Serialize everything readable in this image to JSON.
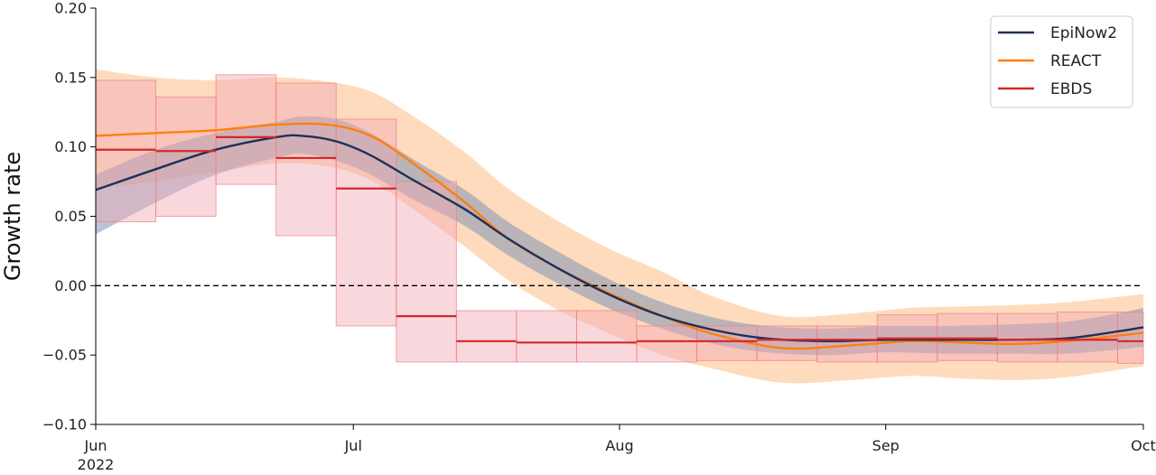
{
  "chart_data": {
    "type": "line",
    "title": "",
    "xlabel": "",
    "ylabel": "Growth rate",
    "x_start": "2022-06-01",
    "x_end": "2022-10-01",
    "ylim": [
      -0.1,
      0.2
    ],
    "yticks": [
      -0.1,
      -0.05,
      0.0,
      0.05,
      0.1,
      0.15,
      0.2
    ],
    "ytick_labels": [
      "−0.10",
      "−0.05",
      "0.00",
      "0.05",
      "0.10",
      "0.15",
      "0.20"
    ],
    "xticks": [
      {
        "date": "2022-06-01",
        "label": "Jun",
        "sublabel": "2022"
      },
      {
        "date": "2022-07-01",
        "label": "Jul",
        "sublabel": ""
      },
      {
        "date": "2022-08-01",
        "label": "Aug",
        "sublabel": ""
      },
      {
        "date": "2022-09-01",
        "label": "Sep",
        "sublabel": ""
      },
      {
        "date": "2022-10-01",
        "label": "Oct",
        "sublabel": ""
      }
    ],
    "reference_line": {
      "y": 0.0,
      "style": "dashed"
    },
    "legend": {
      "position": "top-right"
    },
    "series": [
      {
        "name": "EpiNow2",
        "kind": "line",
        "color": "#1f3057",
        "band_color": "#7f94b5",
        "points": [
          [
            "2022-06-01",
            0.069,
            0.037,
            0.08
          ],
          [
            "2022-06-08",
            0.084,
            0.06,
            0.098
          ],
          [
            "2022-06-15",
            0.098,
            0.08,
            0.11
          ],
          [
            "2022-06-22",
            0.107,
            0.092,
            0.118
          ],
          [
            "2022-06-25",
            0.108,
            0.095,
            0.122
          ],
          [
            "2022-06-29",
            0.104,
            0.09,
            0.12
          ],
          [
            "2022-07-03",
            0.094,
            0.08,
            0.11
          ],
          [
            "2022-07-08",
            0.076,
            0.062,
            0.091
          ],
          [
            "2022-07-14",
            0.055,
            0.043,
            0.069
          ],
          [
            "2022-07-19",
            0.034,
            0.022,
            0.046
          ],
          [
            "2022-07-25",
            0.012,
            0.001,
            0.024
          ],
          [
            "2022-07-31",
            -0.007,
            -0.017,
            0.004
          ],
          [
            "2022-08-06",
            -0.022,
            -0.031,
            -0.012
          ],
          [
            "2022-08-12",
            -0.032,
            -0.042,
            -0.023
          ],
          [
            "2022-08-18",
            -0.038,
            -0.048,
            -0.029
          ],
          [
            "2022-08-25",
            -0.04,
            -0.05,
            -0.031
          ],
          [
            "2022-09-01",
            -0.039,
            -0.048,
            -0.029
          ],
          [
            "2022-09-08",
            -0.039,
            -0.049,
            -0.029
          ],
          [
            "2022-09-15",
            -0.039,
            -0.049,
            -0.028
          ],
          [
            "2022-09-22",
            -0.038,
            -0.049,
            -0.026
          ],
          [
            "2022-09-28",
            -0.033,
            -0.046,
            -0.02
          ],
          [
            "2022-10-01",
            -0.03,
            -0.044,
            -0.016
          ]
        ]
      },
      {
        "name": "REACT",
        "kind": "line",
        "color": "#ff7f0e",
        "band_color": "#ffbe86",
        "points": [
          [
            "2022-06-01",
            0.108,
            0.07,
            0.156
          ],
          [
            "2022-06-08",
            0.11,
            0.075,
            0.15
          ],
          [
            "2022-06-15",
            0.112,
            0.082,
            0.148
          ],
          [
            "2022-06-22",
            0.116,
            0.088,
            0.15
          ],
          [
            "2022-06-28",
            0.116,
            0.086,
            0.147
          ],
          [
            "2022-07-03",
            0.108,
            0.076,
            0.14
          ],
          [
            "2022-07-08",
            0.088,
            0.055,
            0.122
          ],
          [
            "2022-07-14",
            0.06,
            0.028,
            0.096
          ],
          [
            "2022-07-19",
            0.034,
            0.004,
            0.07
          ],
          [
            "2022-07-25",
            0.012,
            -0.018,
            0.046
          ],
          [
            "2022-07-31",
            -0.006,
            -0.035,
            0.026
          ],
          [
            "2022-08-06",
            -0.022,
            -0.05,
            0.01
          ],
          [
            "2022-08-12",
            -0.035,
            -0.06,
            -0.008
          ],
          [
            "2022-08-20",
            -0.045,
            -0.07,
            -0.022
          ],
          [
            "2022-08-28",
            -0.043,
            -0.068,
            -0.02
          ],
          [
            "2022-09-04",
            -0.04,
            -0.065,
            -0.016
          ],
          [
            "2022-09-10",
            -0.041,
            -0.067,
            -0.015
          ],
          [
            "2022-09-16",
            -0.042,
            -0.068,
            -0.014
          ],
          [
            "2022-09-22",
            -0.04,
            -0.066,
            -0.012
          ],
          [
            "2022-10-01",
            -0.034,
            -0.058,
            -0.006
          ]
        ]
      },
      {
        "name": "EBDS",
        "kind": "step",
        "color": "#d62728",
        "box_fill": "#f2a9b3",
        "box_edge": "#f08080",
        "bins": [
          [
            "2022-06-01",
            "2022-06-08",
            0.098,
            0.046,
            0.148
          ],
          [
            "2022-06-08",
            "2022-06-15",
            0.097,
            0.05,
            0.136
          ],
          [
            "2022-06-15",
            "2022-06-22",
            0.107,
            0.073,
            0.152
          ],
          [
            "2022-06-22",
            "2022-06-29",
            0.092,
            0.036,
            0.146
          ],
          [
            "2022-06-29",
            "2022-07-06",
            0.07,
            -0.029,
            0.12
          ],
          [
            "2022-07-06",
            "2022-07-13",
            -0.022,
            -0.055,
            0.075
          ],
          [
            "2022-07-13",
            "2022-07-20",
            -0.04,
            -0.055,
            -0.018
          ],
          [
            "2022-07-20",
            "2022-07-27",
            -0.041,
            -0.055,
            -0.018
          ],
          [
            "2022-07-27",
            "2022-08-03",
            -0.041,
            -0.055,
            -0.018
          ],
          [
            "2022-08-03",
            "2022-08-10",
            -0.04,
            -0.055,
            -0.029
          ],
          [
            "2022-08-10",
            "2022-08-17",
            -0.04,
            -0.054,
            -0.029
          ],
          [
            "2022-08-17",
            "2022-08-24",
            -0.039,
            -0.054,
            -0.029
          ],
          [
            "2022-08-24",
            "2022-08-31",
            -0.039,
            -0.055,
            -0.029
          ],
          [
            "2022-08-31",
            "2022-09-07",
            -0.038,
            -0.055,
            -0.021
          ],
          [
            "2022-09-07",
            "2022-09-14",
            -0.038,
            -0.054,
            -0.02
          ],
          [
            "2022-09-14",
            "2022-09-21",
            -0.039,
            -0.055,
            -0.02
          ],
          [
            "2022-09-21",
            "2022-09-28",
            -0.039,
            -0.055,
            -0.019
          ],
          [
            "2022-09-28",
            "2022-10-01",
            -0.04,
            -0.056,
            -0.019
          ]
        ]
      }
    ]
  }
}
